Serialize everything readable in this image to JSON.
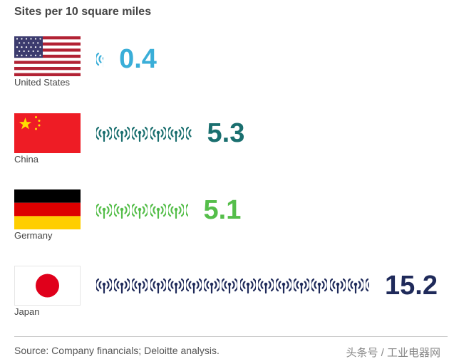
{
  "chart_data": {
    "type": "bar",
    "title": "Sites per 10 square miles",
    "categories": [
      "United States",
      "China",
      "Germany",
      "Japan"
    ],
    "values": [
      0.4,
      5.3,
      5.1,
      15.2
    ],
    "value_labels": [
      "0.4",
      "5.3",
      "5.1",
      "15.2"
    ],
    "colors": [
      "#3aaed8",
      "#1a6f6f",
      "#55be4a",
      "#1f2a5a"
    ],
    "icon": "cell-tower-icon",
    "source": "Source: Company financials; Deloitte analysis."
  },
  "watermark": "头条号 / 工业电器网"
}
